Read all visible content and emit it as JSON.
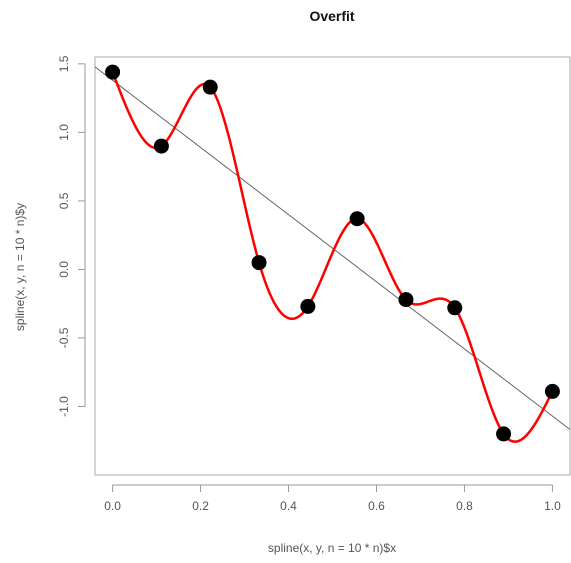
{
  "chart_data": {
    "type": "line",
    "title": "Overfit",
    "xlabel": "spline(x, y, n = 10 * n)$x",
    "ylabel": "spline(x, y, n = 10 * n)$y",
    "xlim": [
      -0.04,
      1.04
    ],
    "ylim": [
      -1.5,
      1.55
    ],
    "x_ticks": [
      0.0,
      0.2,
      0.4,
      0.6,
      0.8,
      1.0
    ],
    "x_tick_labels": [
      "0.0",
      "0.2",
      "0.4",
      "0.6",
      "0.8",
      "1.0"
    ],
    "y_ticks": [
      -1.0,
      -0.5,
      0.0,
      0.5,
      1.0,
      1.5
    ],
    "y_tick_labels": [
      "-1.0",
      "-0.5",
      "0.0",
      "0.5",
      "1.0",
      "1.5"
    ],
    "grid": false,
    "series": [
      {
        "kind": "points",
        "color": "#000000",
        "x": [
          0.0,
          0.111,
          0.222,
          0.333,
          0.444,
          0.556,
          0.667,
          0.778,
          0.889,
          1.0
        ],
        "y": [
          1.44,
          0.9,
          1.33,
          0.05,
          -0.27,
          0.37,
          -0.22,
          -0.28,
          -1.2,
          -0.89
        ]
      },
      {
        "kind": "spline",
        "color": "#ff0000",
        "through_points": true
      },
      {
        "kind": "abline",
        "color": "#666666",
        "intercept": 1.38,
        "slope": -2.45
      }
    ]
  }
}
